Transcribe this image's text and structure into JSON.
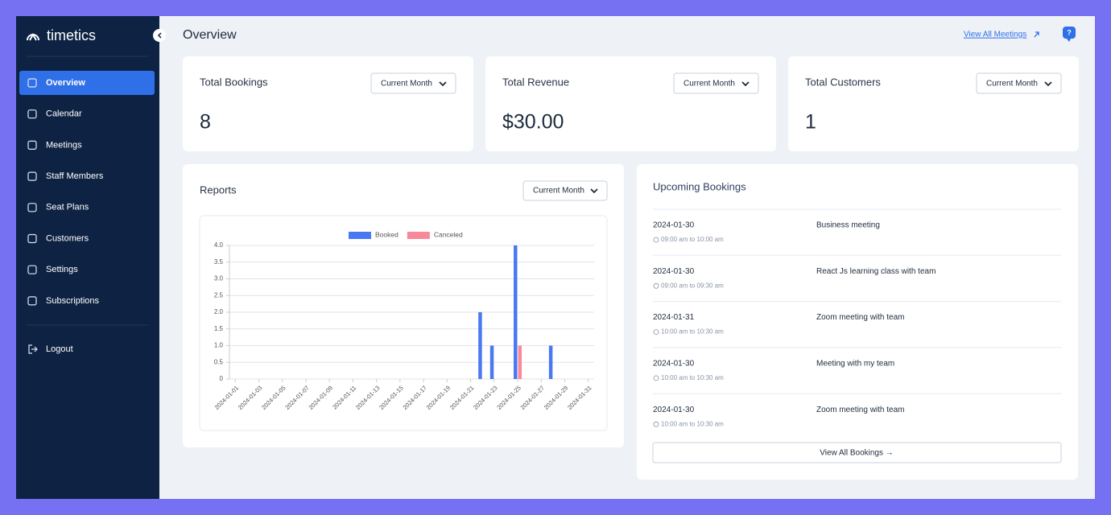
{
  "sidebar": {
    "brand": "timetics",
    "nav": [
      "Overview",
      "Calendar",
      "Meetings",
      "Staff Members",
      "Seat Plans",
      "Customers",
      "Settings",
      "Subscriptions"
    ],
    "logout": "Logout"
  },
  "header": {
    "title": "Overview",
    "link": "View All Meetings",
    "help": "?"
  },
  "stats": [
    {
      "label": "Total Bookings",
      "filter": "Current Month",
      "value": 8
    },
    {
      "label": "Total Revenue",
      "filter": "Current Month",
      "value": "$30.00"
    },
    {
      "label": "Total Customers",
      "filter": "Current Month",
      "value": 1
    }
  ],
  "reports": {
    "title": "Reports",
    "filter": "Current Month"
  },
  "chart_data": {
    "type": "bar",
    "legend": "top",
    "grid": true,
    "categories": [
      "2024-01-01",
      null,
      "2024-01-03",
      null,
      "2024-01-05",
      null,
      "2024-01-07",
      null,
      "2024-01-09",
      null,
      "2024-01-11",
      null,
      "2024-01-13",
      null,
      "2024-01-15",
      null,
      "2024-01-17",
      null,
      "2024-01-19",
      null,
      "2024-01-21",
      null,
      "2024-01-23",
      null,
      "2024-01-25",
      null,
      "2024-01-27",
      null,
      "2024-01-29",
      null,
      "2024-01-31"
    ],
    "series": [
      {
        "name": "Booked",
        "color": "#4a78f0",
        "values": [
          0,
          0,
          0,
          0,
          0,
          0,
          0,
          0,
          0,
          0,
          0,
          0,
          0,
          0,
          0,
          0,
          0,
          0,
          0,
          0,
          0,
          2,
          1,
          0,
          4,
          0,
          0,
          1,
          0,
          0,
          0
        ]
      },
      {
        "name": "Canceled",
        "color": "#f8899a",
        "values": [
          0,
          0,
          0,
          0,
          0,
          0,
          0,
          0,
          0,
          0,
          0,
          0,
          0,
          0,
          0,
          0,
          0,
          0,
          0,
          0,
          0,
          0,
          0,
          0,
          1,
          0,
          0,
          0,
          0,
          0,
          0
        ]
      }
    ],
    "ylim": [
      0,
      4
    ],
    "yticks": [
      0,
      0.5,
      {
        "value": 1,
        "label": "1.0"
      },
      1.5,
      {
        "value": 2,
        "label": "2.0"
      },
      2.5,
      {
        "value": 3,
        "label": "3.0"
      },
      3.5,
      {
        "value": 4,
        "label": "4.0"
      }
    ]
  },
  "upcoming": {
    "title": "Upcoming Bookings",
    "items": [
      {
        "date": "2024-01-30",
        "time": "09:00 am to 10:00 am",
        "title": "Business meeting"
      },
      {
        "date": "2024-01-30",
        "time": "09:00 am to 09:30 am",
        "title": "React Js learning class with team"
      },
      {
        "date": "2024-01-31",
        "time": "10:00 am to 10:30 am",
        "title": "Zoom meeting with team"
      },
      {
        "date": "2024-01-30",
        "time": "10:00 am to 10:30 am",
        "title": "Meeting with my team"
      },
      {
        "date": "2024-01-30",
        "time": "10:00 am to 10:30 am",
        "title": "Zoom meeting with team"
      }
    ],
    "button": "View All Bookings →"
  }
}
